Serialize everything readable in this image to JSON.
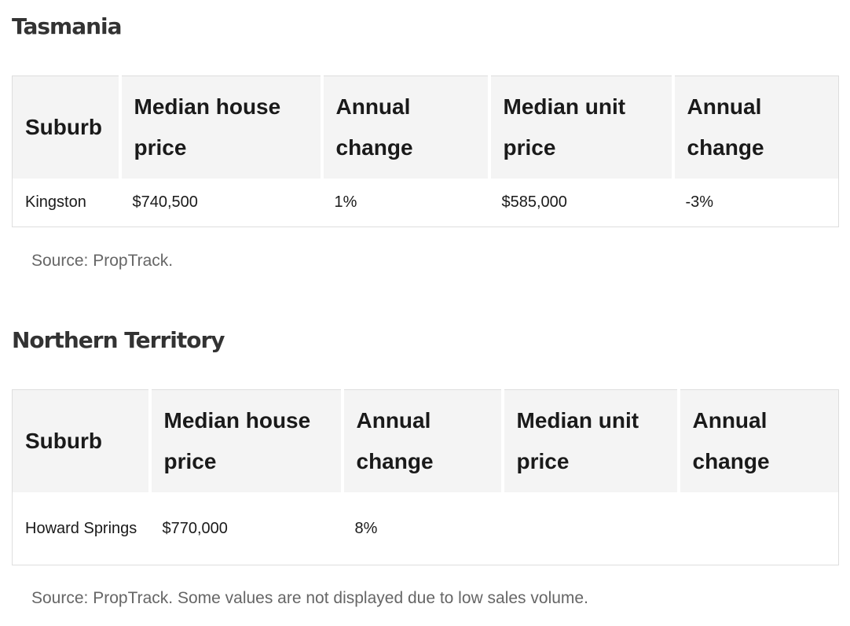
{
  "tasmania": {
    "title": "Tasmania",
    "headers": [
      "Suburb",
      "Median house price",
      "Annual change",
      "Median unit price",
      "Annual change"
    ],
    "rows": [
      [
        "Kingston",
        "$740,500",
        "1%",
        "$585,000",
        "-3%"
      ]
    ],
    "source": "Source: PropTrack."
  },
  "northern_territory": {
    "title": "Northern Territory",
    "headers": [
      "Suburb",
      "Median house price",
      "Annual change",
      "Median unit price",
      "Annual change"
    ],
    "rows": [
      [
        "Howard Springs",
        "$770,000",
        "8%",
        "",
        ""
      ]
    ],
    "source": "Source: PropTrack. Some values are not displayed due to low sales volume."
  }
}
